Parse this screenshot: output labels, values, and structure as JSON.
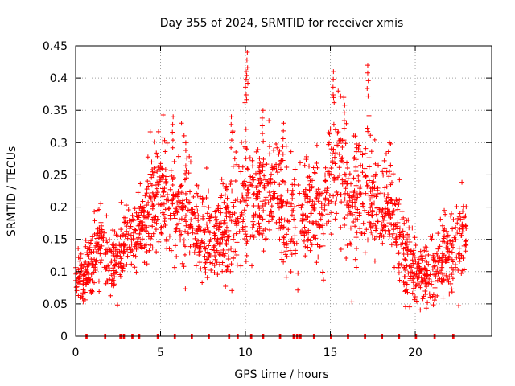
{
  "chart_data": {
    "type": "scatter",
    "title": "Day 355 of 2024, SRMTID for receiver xmis",
    "xlabel": "GPS time / hours",
    "ylabel": "SRMTID / TECUs",
    "xlim": [
      0,
      24.5
    ],
    "ylim": [
      0,
      0.45
    ],
    "xticks": [
      0,
      5,
      10,
      15,
      20
    ],
    "xtick_labels": [
      "0",
      "5",
      "10",
      "15",
      "20"
    ],
    "yticks": [
      0,
      0.05,
      0.1,
      0.15,
      0.2,
      0.25,
      0.3,
      0.35,
      0.4,
      0.45
    ],
    "ytick_labels": [
      "0",
      "0.05",
      "0.1",
      "0.15",
      "0.2",
      "0.25",
      "0.3",
      "0.35",
      "0.4",
      "0.45"
    ],
    "grid": true,
    "series": [
      {
        "name": "SRMTID",
        "marker": "+",
        "color": "#ff0000",
        "profile": {
          "x": [
            0,
            0.5,
            1,
            1.5,
            2,
            2.5,
            3,
            3.5,
            4,
            4.5,
            5,
            5.5,
            6,
            6.5,
            7,
            7.5,
            8,
            8.5,
            9,
            9.5,
            10,
            10.5,
            11,
            11.5,
            12,
            12.5,
            13,
            13.5,
            14,
            14.5,
            15,
            15.5,
            16,
            16.5,
            17,
            17.5,
            18,
            18.5,
            19,
            19.5,
            20,
            20.5,
            21,
            21.5,
            22,
            22.5,
            23
          ],
          "y": [
            0.1,
            0.08,
            0.12,
            0.15,
            0.11,
            0.12,
            0.15,
            0.15,
            0.17,
            0.2,
            0.22,
            0.2,
            0.21,
            0.19,
            0.17,
            0.16,
            0.15,
            0.15,
            0.17,
            0.2,
            0.23,
            0.2,
            0.21,
            0.22,
            0.23,
            0.18,
            0.18,
            0.2,
            0.19,
            0.18,
            0.25,
            0.27,
            0.22,
            0.2,
            0.24,
            0.21,
            0.18,
            0.19,
            0.15,
            0.12,
            0.1,
            0.09,
            0.09,
            0.12,
            0.12,
            0.14,
            0.15
          ],
          "spread": [
            0.02,
            0.025,
            0.03,
            0.03,
            0.025,
            0.03,
            0.03,
            0.03,
            0.035,
            0.05,
            0.05,
            0.05,
            0.05,
            0.05,
            0.045,
            0.045,
            0.045,
            0.045,
            0.05,
            0.06,
            0.07,
            0.06,
            0.055,
            0.055,
            0.06,
            0.055,
            0.05,
            0.05,
            0.05,
            0.05,
            0.06,
            0.07,
            0.065,
            0.06,
            0.065,
            0.055,
            0.05,
            0.05,
            0.045,
            0.04,
            0.03,
            0.03,
            0.03,
            0.035,
            0.035,
            0.04,
            0.04
          ]
        },
        "peaks": [
          {
            "x": 10.1,
            "y": 0.44
          },
          {
            "x": 10.0,
            "y": 0.41
          },
          {
            "x": 17.2,
            "y": 0.42
          },
          {
            "x": 15.2,
            "y": 0.41
          },
          {
            "x": 15.8,
            "y": 0.37
          },
          {
            "x": 5.7,
            "y": 0.34
          },
          {
            "x": 9.2,
            "y": 0.34
          },
          {
            "x": 11.0,
            "y": 0.35
          },
          {
            "x": 12.2,
            "y": 0.33
          },
          {
            "x": 6.5,
            "y": 0.3
          },
          {
            "x": 4.5,
            "y": 0.27
          },
          {
            "x": 16.5,
            "y": 0.31
          }
        ],
        "zero_points": [
          0.6,
          1.7,
          2.6,
          2.8,
          3.3,
          3.7,
          4.8,
          5.8,
          6.8,
          7.8,
          9.0,
          9.5,
          10.3,
          11.0,
          12.0,
          12.8,
          13.0,
          13.2,
          14.0,
          15.0,
          16.0,
          17.0,
          18.0,
          19.0,
          20.0,
          21.1,
          22.2
        ]
      }
    ]
  }
}
